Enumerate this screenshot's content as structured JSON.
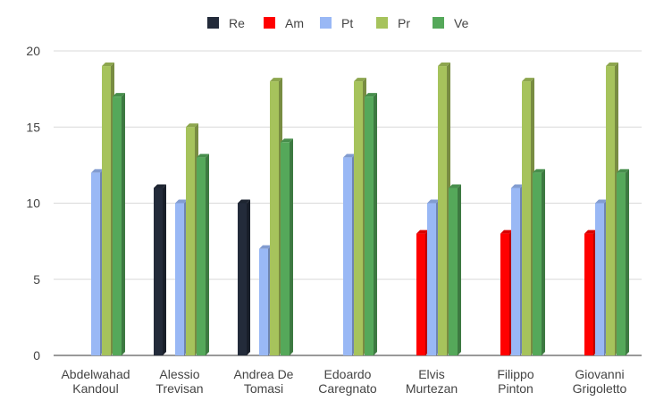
{
  "chart_data": {
    "type": "bar",
    "title": "",
    "xlabel": "",
    "ylabel": "",
    "ylim": [
      0,
      20
    ],
    "yticks": [
      0,
      5,
      10,
      15,
      20
    ],
    "grid": true,
    "legend_position": "top",
    "categories": [
      [
        "Abdelwahad",
        "Kandoul"
      ],
      [
        "Alessio",
        "Trevisan"
      ],
      [
        "Andrea De",
        "Tomasi"
      ],
      [
        "Edoardo",
        "Caregnato"
      ],
      [
        "Elvis",
        "Murtezan"
      ],
      [
        "Filippo",
        "Pinton"
      ],
      [
        "Giovanni",
        "Grigoletto"
      ]
    ],
    "series": [
      {
        "name": "Re",
        "color": "#232b3a",
        "values": [
          0,
          11,
          10,
          0,
          0,
          0,
          0
        ]
      },
      {
        "name": "Am",
        "color": "#ff0000",
        "values": [
          0,
          0,
          0,
          0,
          8,
          8,
          8
        ]
      },
      {
        "name": "Pt",
        "color": "#99b8f5",
        "values": [
          12,
          10,
          7,
          13,
          10,
          11,
          10
        ]
      },
      {
        "name": "Pr",
        "color": "#a6c35c",
        "values": [
          19,
          15,
          18,
          18,
          19,
          18,
          19
        ]
      },
      {
        "name": "Ve",
        "color": "#55a85a",
        "values": [
          17,
          13,
          14,
          17,
          11,
          12,
          12
        ]
      }
    ]
  }
}
